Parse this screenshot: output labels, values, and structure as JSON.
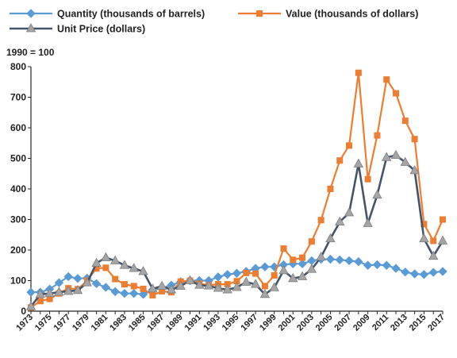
{
  "chart_data": {
    "type": "line",
    "index_note": "1990 = 100",
    "x": [
      1973,
      1974,
      1975,
      1976,
      1977,
      1978,
      1979,
      1980,
      1981,
      1982,
      1983,
      1984,
      1985,
      1986,
      1987,
      1988,
      1989,
      1990,
      1991,
      1992,
      1993,
      1994,
      1995,
      1996,
      1997,
      1998,
      1999,
      2000,
      2001,
      2002,
      2003,
      2004,
      2005,
      2006,
      2007,
      2008,
      2009,
      2010,
      2011,
      2012,
      2013,
      2014,
      2015,
      2016,
      2017
    ],
    "x_tick_labels": [
      "1973",
      "1975",
      "1977",
      "1979",
      "1981",
      "1983",
      "1985",
      "1987",
      "1989",
      "1991",
      "1993",
      "1995",
      "1997",
      "1999",
      "2001",
      "2003",
      "2005",
      "2007",
      "2009",
      "2011",
      "2013",
      "2015",
      "2017"
    ],
    "ylim": [
      0,
      800
    ],
    "y_ticks": [
      0,
      100,
      200,
      300,
      400,
      500,
      600,
      700,
      800
    ],
    "grid": false,
    "legend_position": "top",
    "series": [
      {
        "name": "Quantity (thousands of barrels)",
        "color": "#5B9BD5",
        "marker": "diamond",
        "values": [
          62,
          62,
          72,
          93,
          113,
          107,
          108,
          90,
          78,
          64,
          58,
          58,
          55,
          70,
          75,
          85,
          96,
          100,
          100,
          100,
          112,
          120,
          124,
          130,
          140,
          145,
          145,
          152,
          155,
          155,
          165,
          170,
          170,
          168,
          165,
          162,
          150,
          152,
          150,
          140,
          128,
          122,
          120,
          127,
          130
        ]
      },
      {
        "name": "Value (thousands of dollars)",
        "color": "#ED7D31",
        "marker": "square",
        "values": [
          12,
          33,
          40,
          58,
          75,
          72,
          100,
          140,
          142,
          105,
          88,
          82,
          73,
          52,
          65,
          62,
          97,
          100,
          90,
          85,
          88,
          88,
          98,
          125,
          123,
          82,
          117,
          205,
          168,
          175,
          228,
          298,
          400,
          493,
          542,
          780,
          432,
          575,
          758,
          713,
          623,
          563,
          285,
          230,
          300
        ]
      },
      {
        "name": "Unit Price (dollars)",
        "color": "#44546A",
        "marker": "triangle",
        "values": [
          15,
          55,
          58,
          62,
          65,
          68,
          93,
          157,
          175,
          165,
          150,
          140,
          130,
          73,
          82,
          70,
          82,
          100,
          85,
          83,
          75,
          70,
          78,
          95,
          88,
          55,
          77,
          133,
          107,
          113,
          137,
          177,
          237,
          292,
          322,
          482,
          287,
          380,
          503,
          510,
          487,
          460,
          237,
          180,
          230
        ]
      }
    ]
  }
}
